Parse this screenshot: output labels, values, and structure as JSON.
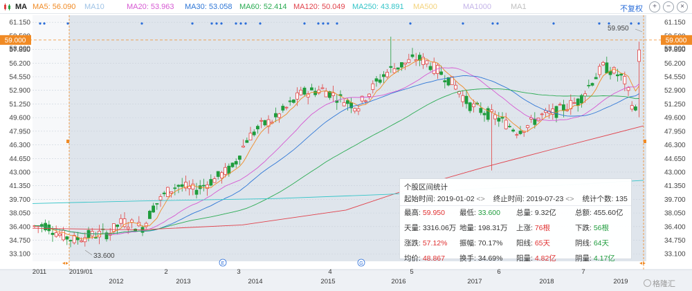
{
  "symbol": "MA",
  "ma_legend": [
    {
      "label": "MA5: 56.090",
      "color": "#f08a24"
    },
    {
      "label": "MA10",
      "color": "#9fc3e6"
    },
    {
      "label": "MA20: 53.963",
      "color": "#d659d2"
    },
    {
      "label": "MA30: 53.058",
      "color": "#2d76d6"
    },
    {
      "label": "MA60: 52.414",
      "color": "#2aab52"
    },
    {
      "label": "MA120: 50.049",
      "color": "#e0404a"
    },
    {
      "label": "MA250: 43.891",
      "color": "#33c4c8"
    },
    {
      "label": "MA500",
      "color": "#f3d27a"
    },
    {
      "label": "MA1000",
      "color": "#c4b4e8"
    },
    {
      "label": "MA1",
      "color": "#bfbfbf"
    }
  ],
  "fq_button": "不复权",
  "icons": {
    "zoom_in": "zoom-in-icon",
    "zoom_out": "zoom-out-icon",
    "close": "close-icon",
    "app": "candlestick-app-icon"
  },
  "chart_data": {
    "type": "candlestick",
    "y_ticks": [
      "61.150",
      "59.500",
      "58.000",
      "57.850",
      "56.200",
      "54.550",
      "52.900",
      "51.250",
      "49.600",
      "47.950",
      "46.300",
      "44.650",
      "43.000",
      "41.350",
      "39.700",
      "38.050",
      "36.400",
      "34.750",
      "33.100"
    ],
    "y_range": [
      32.2,
      62.0
    ],
    "current_price_label": "59.000",
    "current_price": 59.0,
    "high_annotation": "59.950",
    "low_annotation": "33.600",
    "x_ticks": [
      "2011",
      "2019/01",
      "2012",
      "2",
      "2013",
      "3",
      "2014",
      "4",
      "2015",
      "5",
      "2016",
      "2017",
      "6",
      "2018",
      "7",
      "2019"
    ],
    "x_markers": [
      "E",
      "G"
    ],
    "ma_values_latest": {
      "MA5": 56.09,
      "MA20": 53.963,
      "MA30": 53.058,
      "MA60": 52.414,
      "MA120": 50.049,
      "MA250": 43.891
    }
  },
  "stats": {
    "title": "个股区间统计",
    "start_label": "起始时间: 2019-01-02",
    "end_label": "终止时间: 2019-07-23",
    "count_label": "统计个数: 135",
    "cells": [
      {
        "label": "最高: ",
        "value": "59.950",
        "tone": "red"
      },
      {
        "label": "最低: ",
        "value": "33.600",
        "tone": "green"
      },
      {
        "label": "总量: ",
        "value": "9.32亿",
        "tone": ""
      },
      {
        "label": "总额: ",
        "value": "455.60亿",
        "tone": ""
      },
      {
        "label": "天量: ",
        "value": "3316.06万",
        "tone": ""
      },
      {
        "label": "地量: ",
        "value": "198.31万",
        "tone": ""
      },
      {
        "label": "上涨: ",
        "value": "76根",
        "tone": "red"
      },
      {
        "label": "下跌: ",
        "value": "56根",
        "tone": "green"
      },
      {
        "label": "涨跌: ",
        "value": "57.12%",
        "tone": "red"
      },
      {
        "label": "振幅: ",
        "value": "70.17%",
        "tone": ""
      },
      {
        "label": "阳线: ",
        "value": "65天",
        "tone": "red"
      },
      {
        "label": "阴线: ",
        "value": "64天",
        "tone": "green"
      },
      {
        "label": "均价: ",
        "value": "48.867",
        "tone": "red"
      },
      {
        "label": "换手: ",
        "value": "34.69%",
        "tone": ""
      },
      {
        "label": "阳量: ",
        "value": "4.82亿",
        "tone": "red"
      },
      {
        "label": "阴量: ",
        "value": "4.17亿",
        "tone": "green"
      }
    ]
  },
  "watermark": "格隆汇"
}
